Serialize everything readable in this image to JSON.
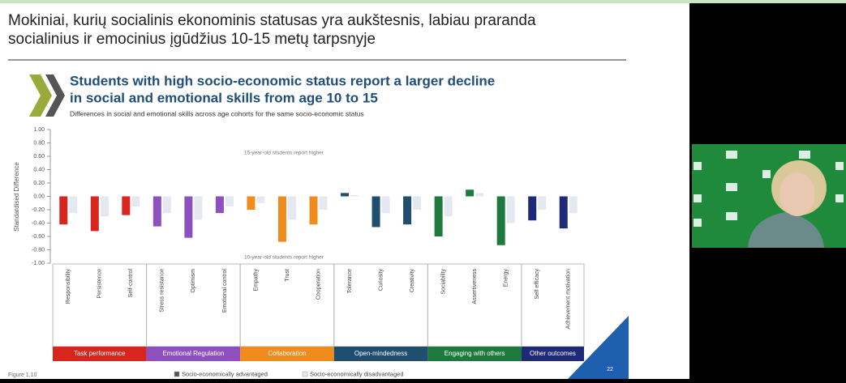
{
  "header": {
    "title_lines": [
      "Mokiniai, kurių socialinis ekonominis statusas yra aukštesnis, labiau praranda",
      "socialinius ir emocinius įgūdžius 10-15 metų tarpsnyje"
    ]
  },
  "slide": {
    "figure": "Figure 1.10",
    "page": "22"
  },
  "chart_data": {
    "type": "bar",
    "title_lines": [
      "Students with high socio-economic status report a larger decline",
      "in social and emotional skills from age 10 to 15"
    ],
    "subtitle": "Differences in social and emotional skills across age cohorts for the same socio-economic status",
    "y_label": "Standardised Difference",
    "annotations": [
      "15-year-old students report higher",
      "10-year-old students report higher"
    ],
    "ylim": [
      -1,
      1
    ],
    "yticks": [
      {
        "value": 1,
        "label": "1.00"
      },
      {
        "value": 0.8,
        "label": "0.80"
      },
      {
        "value": 0.6,
        "label": "0.60"
      },
      {
        "value": 0.4,
        "label": "0.40"
      },
      {
        "value": 0.2,
        "label": "0.20"
      },
      {
        "value": 0,
        "label": "0.00"
      },
      {
        "value": -0.2,
        "label": "-0.20"
      },
      {
        "value": -0.4,
        "label": "-0.40"
      },
      {
        "value": -0.6,
        "label": "-0.60"
      },
      {
        "value": -0.8,
        "label": "-0.80"
      },
      {
        "value": -1,
        "label": "-1.00"
      }
    ],
    "legend": [
      {
        "name": "Socio-economically advantaged",
        "color": "#555555"
      },
      {
        "name": "Socio-economically disadvantaged",
        "color": "#e4e8f0"
      }
    ],
    "groups": [
      {
        "name": "Task performance",
        "color": "#d7261e",
        "categories": [
          "Responsibility",
          "Persistence",
          "Self-control"
        ],
        "advantaged": [
          -0.42,
          -0.52,
          -0.28
        ],
        "disadvantaged": [
          -0.25,
          -0.3,
          -0.15
        ]
      },
      {
        "name": "Emotional Regulation",
        "color": "#8e4fbf",
        "categories": [
          "Stress resistance",
          "Optimism",
          "Emotional control"
        ],
        "advantaged": [
          -0.45,
          -0.62,
          -0.25
        ],
        "disadvantaged": [
          -0.25,
          -0.35,
          -0.15
        ]
      },
      {
        "name": "Collaboration",
        "color": "#f08c1e",
        "categories": [
          "Empathy",
          "Trust",
          "Cooperation"
        ],
        "advantaged": [
          -0.2,
          -0.68,
          -0.42
        ],
        "disadvantaged": [
          -0.1,
          -0.35,
          -0.2
        ]
      },
      {
        "name": "Open-mindedness",
        "color": "#1f4e6e",
        "categories": [
          "Tolerance",
          "Curiosity",
          "Creativity"
        ],
        "advantaged": [
          0.05,
          -0.46,
          -0.42
        ],
        "disadvantaged": [
          0.02,
          -0.25,
          -0.2
        ]
      },
      {
        "name": "Engaging with others",
        "color": "#1e7a3c",
        "categories": [
          "Sociability",
          "Assertiveness",
          "Energy"
        ],
        "advantaged": [
          -0.6,
          0.1,
          -0.73
        ],
        "disadvantaged": [
          -0.3,
          0.05,
          -0.4
        ]
      },
      {
        "name": "Other outcomes",
        "color": "#1e2a78",
        "categories": [
          "Self efficacy",
          "Achievement motivation"
        ],
        "advantaged": [
          -0.36,
          -0.48
        ],
        "disadvantaged": [
          -0.2,
          -0.25
        ]
      }
    ]
  }
}
